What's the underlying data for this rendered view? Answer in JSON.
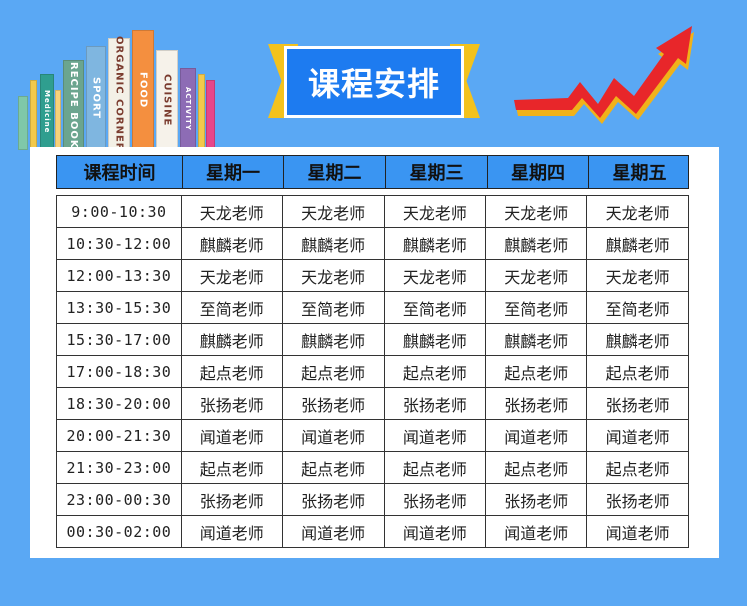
{
  "title": "课程安排",
  "colors": {
    "background": "#5aa8f4",
    "header_fill": "#3a95f2",
    "title_fill": "#1d7bf0",
    "ribbon": "#f3c21d",
    "arrow": "#e8262a"
  },
  "books": [
    {
      "label": "",
      "color": "#7fc8a9"
    },
    {
      "label": "",
      "color": "#f2c94c"
    },
    {
      "label": "Medicine",
      "color": "#2f9e8f"
    },
    {
      "label": "",
      "color": "#f7d27a"
    },
    {
      "label": "RECIPE BOOK",
      "color": "#6ba58f"
    },
    {
      "label": "SPORT",
      "color": "#7fb6e0"
    },
    {
      "label": "ORGANIC CORNER",
      "color": "#f3f0e6"
    },
    {
      "label": "FOOD",
      "color": "#f48f3f"
    },
    {
      "label": "CUISINE",
      "color": "#f6f2ea"
    },
    {
      "label": "ACTIVITY",
      "color": "#8d6cb5"
    },
    {
      "label": "",
      "color": "#f2c94c"
    },
    {
      "label": "",
      "color": "#e6468b"
    }
  ],
  "headers": [
    "课程时间",
    "星期一",
    "星期二",
    "星期三",
    "星期四",
    "星期五"
  ],
  "rows": [
    [
      "9:00-10:30",
      "天龙老师",
      "天龙老师",
      "天龙老师",
      "天龙老师",
      "天龙老师"
    ],
    [
      "10:30-12:00",
      "麒麟老师",
      "麒麟老师",
      "麒麟老师",
      "麒麟老师",
      "麒麟老师"
    ],
    [
      "12:00-13:30",
      "天龙老师",
      "天龙老师",
      "天龙老师",
      "天龙老师",
      "天龙老师"
    ],
    [
      "13:30-15:30",
      "至简老师",
      "至简老师",
      "至简老师",
      "至简老师",
      "至简老师"
    ],
    [
      "15:30-17:00",
      "麒麟老师",
      "麒麟老师",
      "麒麟老师",
      "麒麟老师",
      "麒麟老师"
    ],
    [
      "17:00-18:30",
      "起点老师",
      "起点老师",
      "起点老师",
      "起点老师",
      "起点老师"
    ],
    [
      "18:30-20:00",
      "张扬老师",
      "张扬老师",
      "张扬老师",
      "张扬老师",
      "张扬老师"
    ],
    [
      "20:00-21:30",
      "闻道老师",
      "闻道老师",
      "闻道老师",
      "闻道老师",
      "闻道老师"
    ],
    [
      "21:30-23:00",
      "起点老师",
      "起点老师",
      "起点老师",
      "起点老师",
      "起点老师"
    ],
    [
      "23:00-00:30",
      "张扬老师",
      "张扬老师",
      "张扬老师",
      "张扬老师",
      "张扬老师"
    ],
    [
      "00:30-02:00",
      "闻道老师",
      "闻道老师",
      "闻道老师",
      "闻道老师",
      "闻道老师"
    ]
  ]
}
